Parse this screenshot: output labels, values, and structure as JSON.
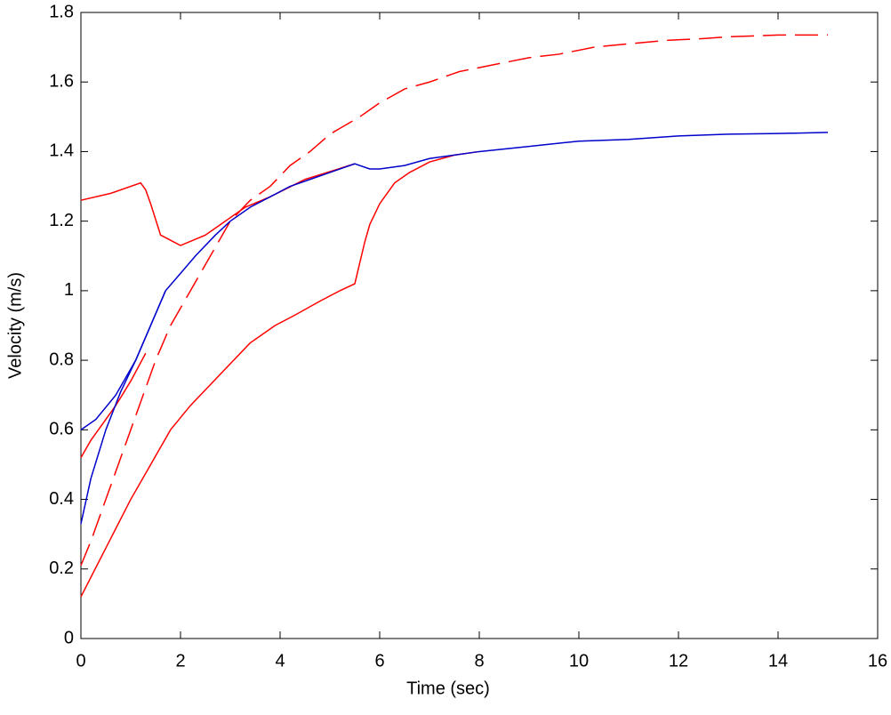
{
  "chart_data": {
    "type": "line",
    "xlabel": "Time (sec)",
    "ylabel": "Velocity (m/s)",
    "xlim": [
      0,
      16
    ],
    "xticks": [
      0,
      2,
      4,
      6,
      8,
      10,
      12,
      14,
      16
    ],
    "ylim": [
      0,
      1.8
    ],
    "yticks": [
      0,
      0.2,
      0.4,
      0.6,
      0.8,
      1,
      1.2,
      1.4,
      1.6,
      1.8
    ],
    "grid": false,
    "series": [
      {
        "color": "#ff0000",
        "style": "solid",
        "x": [
          0,
          0.6,
          1.2,
          1.3,
          1.4,
          1.6,
          2.0,
          2.5,
          3.0,
          3.3,
          3.8,
          4.5,
          5.5
        ],
        "values": [
          1.26,
          1.28,
          1.31,
          1.29,
          1.25,
          1.16,
          1.13,
          1.16,
          1.21,
          1.24,
          1.27,
          1.32,
          1.365
        ]
      },
      {
        "color": "#ff0000",
        "style": "solid",
        "x": [
          0,
          0.5,
          1,
          1.4,
          1.8,
          2.2,
          2.6,
          3.0,
          3.4,
          3.9,
          4.3,
          4.8,
          5.2,
          5.5,
          5.6,
          5.7,
          5.8,
          6.0,
          6.3,
          6.6,
          7.0,
          7.5,
          8.0
        ],
        "values": [
          0.12,
          0.26,
          0.4,
          0.5,
          0.6,
          0.67,
          0.73,
          0.79,
          0.85,
          0.9,
          0.93,
          0.97,
          1.0,
          1.02,
          1.08,
          1.14,
          1.19,
          1.25,
          1.31,
          1.34,
          1.37,
          1.39,
          1.4
        ]
      },
      {
        "color": "#ff0000",
        "style": "solid",
        "x": [
          0,
          0.2,
          0.4,
          0.7,
          1.0,
          1.3
        ],
        "values": [
          0.52,
          0.57,
          0.61,
          0.67,
          0.74,
          0.82
        ]
      },
      {
        "color": "#ff0000",
        "style": "dashed",
        "x": [
          0,
          0.2,
          0.5,
          0.8,
          1.0,
          1.3,
          1.5,
          1.8,
          2.2,
          2.6,
          3.0,
          3.4,
          3.8,
          4.2,
          4.6,
          5.0,
          5.6,
          6.0,
          6.5,
          7.0,
          7.6,
          8.3,
          9.0,
          9.6,
          10.3,
          11.0,
          11.8,
          12.5,
          13.0,
          14.0,
          15.0
        ],
        "values": [
          0.21,
          0.28,
          0.4,
          0.52,
          0.6,
          0.72,
          0.8,
          0.9,
          1.0,
          1.1,
          1.2,
          1.26,
          1.3,
          1.36,
          1.4,
          1.45,
          1.5,
          1.54,
          1.58,
          1.6,
          1.63,
          1.65,
          1.67,
          1.68,
          1.7,
          1.71,
          1.72,
          1.725,
          1.73,
          1.735,
          1.735
        ]
      },
      {
        "color": "#0000cc",
        "style": "solid",
        "x": [
          0,
          0.3,
          0.7,
          1.1,
          1.4,
          1.7,
          2.0,
          2.3,
          2.7,
          3.0,
          3.4,
          3.8,
          4.2,
          4.6,
          5.0,
          5.5,
          5.8,
          6.0,
          6.5,
          7.0,
          7.5,
          8.0,
          9.0,
          10.0,
          11.0,
          12.0,
          13.0,
          14.0,
          15.0
        ],
        "values": [
          0.6,
          0.63,
          0.7,
          0.8,
          0.9,
          1.0,
          1.05,
          1.1,
          1.16,
          1.2,
          1.24,
          1.27,
          1.3,
          1.32,
          1.34,
          1.365,
          1.35,
          1.35,
          1.36,
          1.38,
          1.39,
          1.4,
          1.415,
          1.43,
          1.435,
          1.445,
          1.45,
          1.452,
          1.455
        ]
      },
      {
        "color": "#0000cc",
        "style": "solid",
        "x": [
          0,
          0.2,
          0.5,
          0.8,
          1.1,
          1.4,
          1.7
        ],
        "values": [
          0.33,
          0.46,
          0.6,
          0.71,
          0.8,
          0.9,
          1.0
        ]
      }
    ]
  }
}
